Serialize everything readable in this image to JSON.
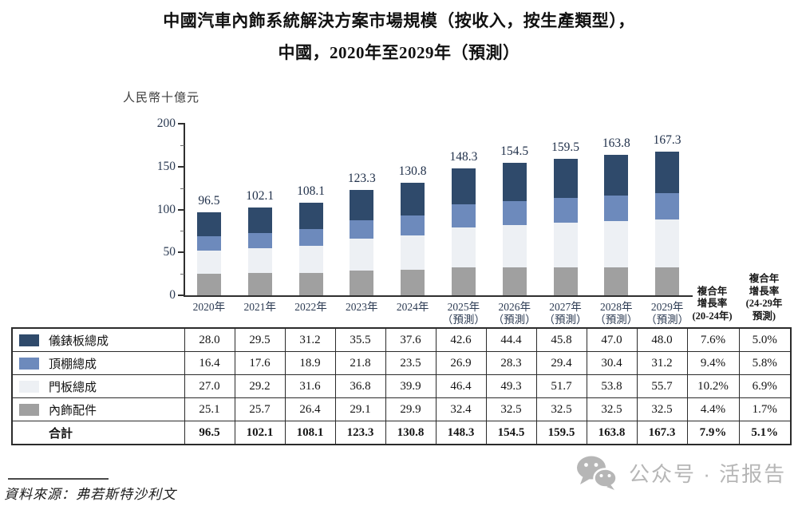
{
  "title": {
    "line1": "中國汽車內飾系統解決方案市場規模（按收入，按生產類型），",
    "line2": "中國，2020年至2029年（預測）"
  },
  "chart_data": {
    "type": "bar",
    "stacked": true,
    "title": "中國汽車內飾系統解決方案市場規模（按收入，按生產類型），中國，2020年至2029年（預測）",
    "unit_label": "人民幣十億元",
    "ylim": [
      0,
      200
    ],
    "yticks": [
      0,
      50,
      100,
      150,
      200
    ],
    "grid": false,
    "legend_position": "table-left",
    "categories": [
      {
        "label": "2020年"
      },
      {
        "label": "2021年"
      },
      {
        "label": "2022年"
      },
      {
        "label": "2023年"
      },
      {
        "label": "2024年"
      },
      {
        "label": "2025年",
        "sublabel": "（預測）"
      },
      {
        "label": "2026年",
        "sublabel": "（預測）"
      },
      {
        "label": "2027年",
        "sublabel": "（預測）"
      },
      {
        "label": "2028年",
        "sublabel": "（預測）"
      },
      {
        "label": "2029年",
        "sublabel": "（預測）"
      }
    ],
    "stack_order_bottom_to_top": [
      "內飾配件",
      "門板總成",
      "頂棚總成",
      "儀錶板總成"
    ],
    "series": [
      {
        "id": "dashboard-assembly",
        "name": "儀錶板總成",
        "color": "#2f4a6b",
        "values": [
          28.0,
          29.5,
          31.2,
          35.5,
          37.6,
          42.6,
          44.4,
          45.8,
          47.0,
          48.0
        ],
        "cagr_20_24": "7.6%",
        "cagr_24_29": "5.0%"
      },
      {
        "id": "headliner-assembly",
        "name": "頂棚總成",
        "color": "#6d8abc",
        "values": [
          16.4,
          17.6,
          18.9,
          21.8,
          23.5,
          26.9,
          28.3,
          29.4,
          30.4,
          31.2
        ],
        "cagr_20_24": "9.4%",
        "cagr_24_29": "5.8%"
      },
      {
        "id": "door-panel-assembly",
        "name": "門板總成",
        "color": "#edf0f4",
        "values": [
          27.0,
          29.2,
          31.6,
          36.8,
          39.9,
          46.4,
          49.3,
          51.7,
          53.8,
          55.7
        ],
        "cagr_20_24": "10.2%",
        "cagr_24_29": "6.9%"
      },
      {
        "id": "interior-accessories",
        "name": "內飾配件",
        "color": "#a0a0a0",
        "values": [
          25.1,
          25.7,
          26.4,
          29.1,
          29.9,
          32.4,
          32.5,
          32.5,
          32.5,
          32.5
        ],
        "cagr_20_24": "4.4%",
        "cagr_24_29": "1.7%"
      }
    ],
    "totals": {
      "label": "合計",
      "values": [
        96.5,
        102.1,
        108.1,
        123.3,
        130.8,
        148.3,
        154.5,
        159.5,
        163.8,
        167.3
      ],
      "cagr_20_24": "7.9%",
      "cagr_24_29": "5.1%"
    },
    "cagr_headers": [
      {
        "lines": [
          "複合年",
          "增長率",
          "(20-24年)"
        ]
      },
      {
        "lines": [
          "複合年",
          "增長率",
          "(24-29年",
          "預測)"
        ]
      }
    ]
  },
  "footer": {
    "source": "資料來源：弗若斯特沙利文"
  },
  "watermark": {
    "text": "公众号 · 活报告"
  }
}
